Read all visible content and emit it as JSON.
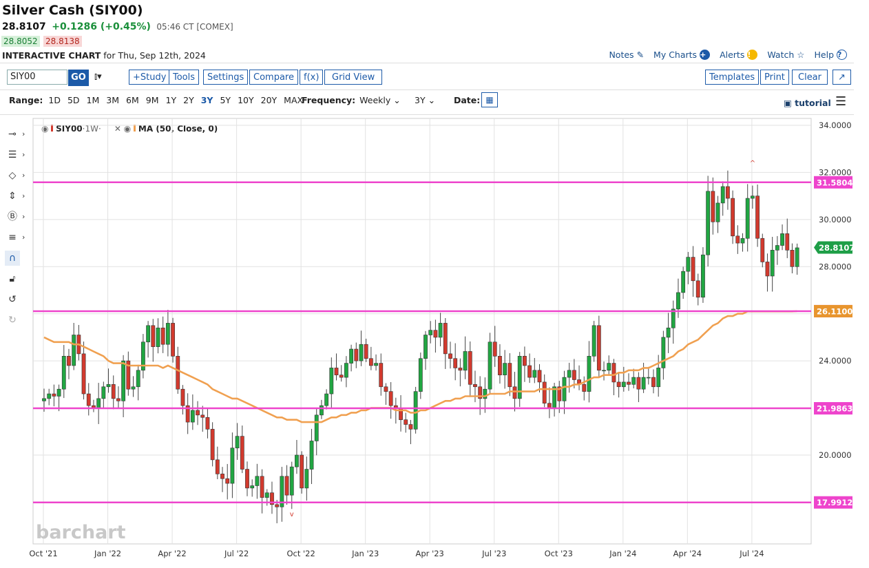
{
  "header": {
    "title": "Silver Cash (SIY00)",
    "last": "28.8107",
    "change": "+0.1286 (+0.45%)",
    "time": "05:46 CT [COMEX]",
    "bid": "28.8052",
    "ask": "28.8138",
    "interactive_label": "INTERACTIVE CHART",
    "interactive_date": "for Thu, Sep 12th, 2024"
  },
  "nav": {
    "notes": "Notes",
    "mycharts": "My Charts",
    "alerts": "Alerts",
    "watch": "Watch",
    "help": "Help"
  },
  "toolbar": {
    "symbol_value": "SIY00",
    "go": "GO",
    "study": "+Study",
    "tools": "Tools",
    "settings": "Settings",
    "compare": "Compare",
    "fx": "f(x)",
    "gridview": "Grid View",
    "templates": "Templates",
    "print": "Print",
    "clear": "Clear",
    "expand": "↗"
  },
  "rangebar": {
    "label": "Range:",
    "ranges": [
      "1D",
      "5D",
      "1M",
      "3M",
      "6M",
      "9M",
      "1Y",
      "2Y",
      "3Y",
      "5Y",
      "10Y",
      "20Y",
      "MAX"
    ],
    "selected": "3Y",
    "freq_label": "Frequency:",
    "freq_value": "Weekly",
    "period_value": "3Y",
    "date_label": "Date:",
    "tutorial": "tutorial"
  },
  "legend": {
    "series": "SIY00",
    "interval": "1W",
    "ma": "MA (50, Close, 0)"
  },
  "colors": {
    "up": "#21a642",
    "down": "#d23a2e",
    "ma": "#f0a050",
    "hline": "#ee44cc",
    "last_tag": "#1e9e47",
    "ma_tag": "#e8952e",
    "accent": "#1c5aa8"
  },
  "chart_data": {
    "type": "candlestick",
    "symbol": "SIY00",
    "frequency": "Weekly",
    "ylim": [
      16,
      34
    ],
    "y_ticks": [
      20,
      22,
      24,
      26,
      28,
      30,
      32,
      34
    ],
    "y_tick_labels": [
      "20.0000",
      "22.0000",
      "24.0000",
      "26.0000",
      "28.0000",
      "30.0000",
      "32.0000",
      "34.0000"
    ],
    "x_tick_labels": [
      "Oct '21",
      "Jan '22",
      "Apr '22",
      "Jul '22",
      "Oct '22",
      "Jan '23",
      "Apr '23",
      "Jul '23",
      "Oct '23",
      "Jan '24",
      "Apr '24",
      "Jul '24"
    ],
    "x_tick_weeks": [
      0,
      13,
      26,
      39,
      52,
      65,
      78,
      91,
      104,
      117,
      130,
      143
    ],
    "horizontal_lines": [
      {
        "value": 31.5804,
        "label": "31.5804"
      },
      {
        "value": 26.11,
        "label": "26.1100"
      },
      {
        "value": 21.9863,
        "label": "21.9863"
      },
      {
        "value": 17.9912,
        "label": "17.9912"
      }
    ],
    "last_value": 28.8107,
    "last_label": "28.8107",
    "ma_last_value": 26.11,
    "ma_last_label": "26.1100",
    "high_marker_week": 143,
    "low_marker_week": 50,
    "closes": [
      22.4,
      22.6,
      22.5,
      22.8,
      24.2,
      23.8,
      25.1,
      24.3,
      22.6,
      22.1,
      22.0,
      22.4,
      22.9,
      23.0,
      22.4,
      22.3,
      24.0,
      22.8,
      22.9,
      23.6,
      24.8,
      25.5,
      24.6,
      25.4,
      24.7,
      25.6,
      24.2,
      22.8,
      22.1,
      21.4,
      21.9,
      21.7,
      21.6,
      21.1,
      19.8,
      19.2,
      19.0,
      18.8,
      20.3,
      20.8,
      19.4,
      18.6,
      18.7,
      19.1,
      18.2,
      18.4,
      17.9,
      17.8,
      19.1,
      18.3,
      19.5,
      20.0,
      18.6,
      19.4,
      20.6,
      21.7,
      22.1,
      22.6,
      23.7,
      23.4,
      23.3,
      23.9,
      24.5,
      24.0,
      24.7,
      24.1,
      23.8,
      23.9,
      22.9,
      22.7,
      22.1,
      22.0,
      21.5,
      21.3,
      21.1,
      22.7,
      24.1,
      25.1,
      25.3,
      25.0,
      25.6,
      24.3,
      24.1,
      23.7,
      23.6,
      24.4,
      23.0,
      22.9,
      22.4,
      22.8,
      24.8,
      24.2,
      23.4,
      23.9,
      22.9,
      22.4,
      24.2,
      23.8,
      23.3,
      23.6,
      23.1,
      22.2,
      22.0,
      22.9,
      22.3,
      23.3,
      23.6,
      23.2,
      23.0,
      22.7,
      24.2,
      25.5,
      23.6,
      23.6,
      23.9,
      23.1,
      22.9,
      23.1,
      23.0,
      23.3,
      22.8,
      23.3,
      23.3,
      22.9,
      23.7,
      25.0,
      25.4,
      26.2,
      26.9,
      27.8,
      28.4,
      27.4,
      26.7,
      28.5,
      31.2,
      29.9,
      30.7,
      31.4,
      30.9,
      29.3,
      29.0,
      29.2,
      30.9,
      31.0,
      29.2,
      28.2,
      27.6,
      28.7,
      28.9,
      29.4,
      28.7,
      28.0,
      28.8
    ],
    "ma_closes": [
      25.0,
      24.9,
      24.8,
      24.8,
      24.8,
      24.8,
      24.7,
      24.7,
      24.6,
      24.5,
      24.4,
      24.3,
      24.2,
      24.0,
      23.9,
      23.9,
      23.9,
      23.8,
      23.8,
      23.8,
      23.8,
      23.8,
      23.8,
      23.8,
      23.7,
      23.8,
      23.7,
      23.6,
      23.5,
      23.4,
      23.3,
      23.2,
      23.1,
      23.0,
      22.8,
      22.7,
      22.6,
      22.5,
      22.4,
      22.4,
      22.3,
      22.2,
      22.1,
      22.0,
      21.9,
      21.8,
      21.7,
      21.6,
      21.6,
      21.5,
      21.5,
      21.5,
      21.4,
      21.4,
      21.4,
      21.4,
      21.4,
      21.5,
      21.6,
      21.6,
      21.7,
      21.7,
      21.8,
      21.8,
      21.9,
      21.9,
      22.0,
      22.0,
      22.0,
      22.0,
      22.0,
      21.9,
      21.9,
      21.9,
      21.8,
      21.8,
      21.9,
      21.9,
      22.0,
      22.1,
      22.2,
      22.3,
      22.3,
      22.4,
      22.4,
      22.5,
      22.5,
      22.5,
      22.5,
      22.5,
      22.6,
      22.6,
      22.6,
      22.6,
      22.7,
      22.7,
      22.7,
      22.7,
      22.7,
      22.7,
      22.8,
      22.8,
      22.8,
      22.8,
      22.8,
      22.9,
      22.9,
      23.0,
      23.0,
      23.1,
      23.2,
      23.3,
      23.3,
      23.4,
      23.4,
      23.4,
      23.5,
      23.5,
      23.6,
      23.6,
      23.6,
      23.7,
      23.7,
      23.8,
      23.9,
      24.0,
      24.1,
      24.2,
      24.4,
      24.5,
      24.7,
      24.8,
      24.9,
      25.1,
      25.3,
      25.5,
      25.6,
      25.8,
      25.9,
      25.9,
      26.0,
      26.0,
      26.1,
      26.1,
      26.1,
      26.1,
      26.1,
      26.1,
      26.1,
      26.1,
      26.1,
      26.1,
      26.11
    ]
  }
}
